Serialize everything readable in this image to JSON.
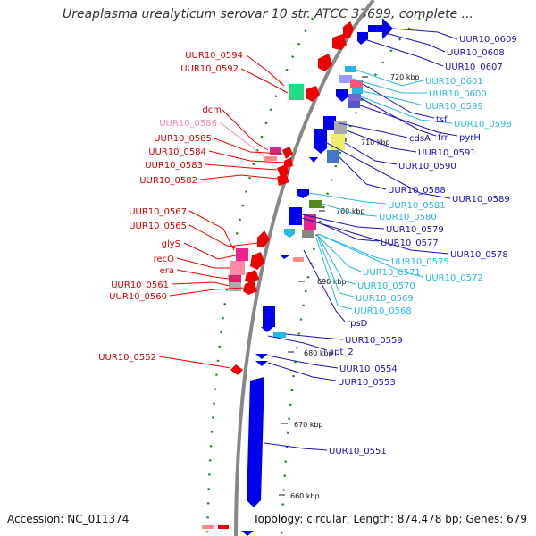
{
  "title": "Ureaplasma urealyticum serovar 10 str. ATCC 33699, complete ...",
  "footer": {
    "accession": "Accession: NC_011374",
    "summary": "Topology: circular; Length: 874,478 bp; Genes: 679"
  },
  "colors": {
    "left_labels": "#d40000",
    "pseudo_label": "#f08aa8",
    "right_labels_dark": "#1a12b8",
    "right_labels_light": "#27b7e6",
    "backbone": "#888888",
    "gc_dots": "#1a8a1a",
    "forward_genes": "#ee0000",
    "reverse_genes": "#0000ee"
  },
  "ticks": [
    {
      "label": "720 kbp"
    },
    {
      "label": "710 kbp"
    },
    {
      "label": "700 kbp"
    },
    {
      "label": "690 kbp"
    },
    {
      "label": "680 kbp"
    },
    {
      "label": "670 kbp"
    },
    {
      "label": "660 kbp"
    }
  ],
  "left_labels": [
    {
      "text": "UUR10_0594",
      "tone": "dark"
    },
    {
      "text": "UUR10_0592",
      "tone": "dark"
    },
    {
      "text": "dcm",
      "tone": "dark"
    },
    {
      "text": "UUR10_0586",
      "tone": "pseudo"
    },
    {
      "text": "UUR10_0585",
      "tone": "dark"
    },
    {
      "text": "UUR10_0584",
      "tone": "dark"
    },
    {
      "text": "UUR10_0583",
      "tone": "dark"
    },
    {
      "text": "UUR10_0582",
      "tone": "dark"
    },
    {
      "text": "UUR10_0567",
      "tone": "dark"
    },
    {
      "text": "UUR10_0565",
      "tone": "dark"
    },
    {
      "text": "glyS",
      "tone": "dark"
    },
    {
      "text": "recO",
      "tone": "dark"
    },
    {
      "text": "era",
      "tone": "dark"
    },
    {
      "text": "UUR10_0561",
      "tone": "dark"
    },
    {
      "text": "UUR10_0560",
      "tone": "dark"
    },
    {
      "text": "UUR10_0552",
      "tone": "dark"
    }
  ],
  "right_labels": [
    {
      "text": "UUR10_0609",
      "tone": "dark"
    },
    {
      "text": "UUR10_0608",
      "tone": "dark"
    },
    {
      "text": "UUR10_0607",
      "tone": "dark"
    },
    {
      "text": "UUR10_0601",
      "tone": "light"
    },
    {
      "text": "UUR10_0600",
      "tone": "light"
    },
    {
      "text": "UUR10_0599",
      "tone": "light"
    },
    {
      "text": "tsf",
      "tone": "dark"
    },
    {
      "text": "UUR10_0598",
      "tone": "light"
    },
    {
      "text": "frr",
      "tone": "dark"
    },
    {
      "text": "pyrH",
      "tone": "dark"
    },
    {
      "text": "cdsA",
      "tone": "dark"
    },
    {
      "text": "UUR10_0591",
      "tone": "dark"
    },
    {
      "text": "UUR10_0590",
      "tone": "dark"
    },
    {
      "text": "UUR10_0588",
      "tone": "dark"
    },
    {
      "text": "UUR10_0589",
      "tone": "dark"
    },
    {
      "text": "UUR10_0581",
      "tone": "light"
    },
    {
      "text": "UUR10_0580",
      "tone": "light"
    },
    {
      "text": "UUR10_0579",
      "tone": "dark"
    },
    {
      "text": "UUR10_0577",
      "tone": "dark"
    },
    {
      "text": "UUR10_0578",
      "tone": "dark"
    },
    {
      "text": "UUR10_0575",
      "tone": "light"
    },
    {
      "text": "UUR10_0571",
      "tone": "light"
    },
    {
      "text": "UUR10_0572",
      "tone": "light"
    },
    {
      "text": "UUR10_0570",
      "tone": "light"
    },
    {
      "text": "UUR10_0569",
      "tone": "light"
    },
    {
      "text": "UUR10_0568",
      "tone": "light"
    },
    {
      "text": "rpsD",
      "tone": "dark"
    },
    {
      "text": "UUR10_0559",
      "tone": "dark"
    },
    {
      "text": "apt_2",
      "tone": "dark"
    },
    {
      "text": "UUR10_0554",
      "tone": "dark"
    },
    {
      "text": "UUR10_0553",
      "tone": "dark"
    },
    {
      "text": "UUR10_0551",
      "tone": "dark"
    }
  ]
}
